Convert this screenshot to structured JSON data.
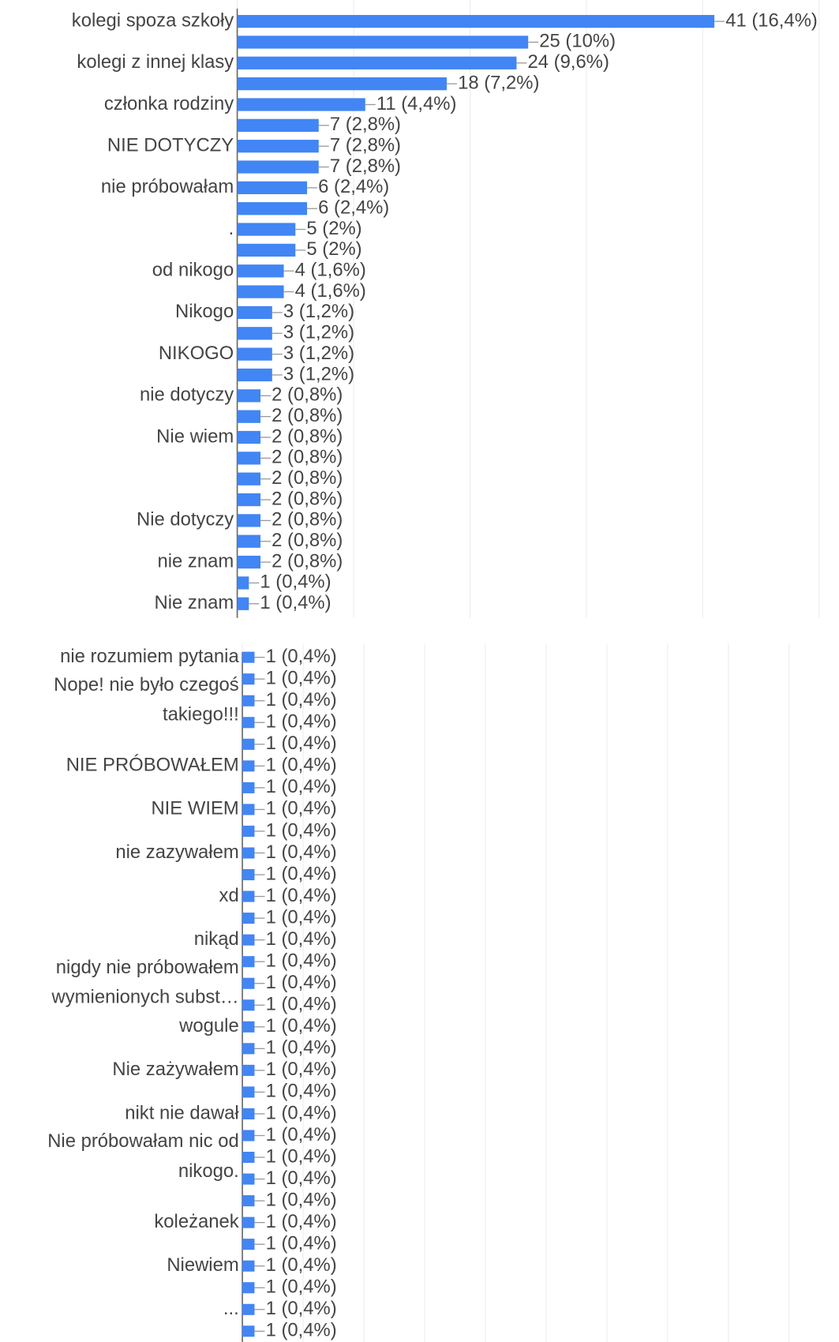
{
  "chart_data": [
    {
      "type": "bar",
      "color": "#4285f4",
      "xlim": [
        0,
        50
      ],
      "xticks": [
        0,
        10,
        20,
        30,
        40,
        50
      ],
      "grid": true,
      "categories": [
        "kolegi spoza szkoły",
        null,
        "kolegi z innej klasy",
        null,
        "członka rodziny",
        null,
        "NIE DOTYCZY",
        null,
        "nie próbowałam",
        null,
        ".",
        null,
        "od nikogo",
        null,
        "Nikogo",
        null,
        "NIKOGO",
        null,
        "nie dotyczy",
        null,
        "Nie wiem",
        null,
        null,
        null,
        "Nie dotyczy",
        null,
        "nie znam",
        null,
        "Nie znam"
      ],
      "values": [
        41,
        25,
        24,
        18,
        11,
        7,
        7,
        7,
        6,
        6,
        5,
        5,
        4,
        4,
        3,
        3,
        3,
        3,
        2,
        2,
        2,
        2,
        2,
        2,
        2,
        2,
        2,
        1,
        1
      ],
      "value_labels": [
        "41 (16,4%)",
        "25 (10%)",
        "24 (9,6%)",
        "18 (7,2%)",
        "11 (4,4%)",
        "7 (2,8%)",
        "7 (2,8%)",
        "7 (2,8%)",
        "6 (2,4%)",
        "6 (2,4%)",
        "5 (2%)",
        "5 (2%)",
        "4 (1,6%)",
        "4 (1,6%)",
        "3 (1,2%)",
        "3 (1,2%)",
        "3 (1,2%)",
        "3 (1,2%)",
        "2 (0,8%)",
        "2 (0,8%)",
        "2 (0,8%)",
        "2 (0,8%)",
        "2 (0,8%)",
        "2 (0,8%)",
        "2 (0,8%)",
        "2 (0,8%)",
        "2 (0,8%)",
        "1 (0,4%)",
        "1 (0,4%)"
      ]
    },
    {
      "type": "bar",
      "color": "#4285f4",
      "xlim": [
        0,
        45
      ],
      "xticks": [
        0,
        5,
        10,
        15,
        20,
        25,
        30,
        35,
        40,
        45
      ],
      "grid": true,
      "categories": [
        "nie rozumiem pytania",
        null,
        "Nope! nie było czegoś takiego!!!",
        null,
        null,
        "NIE PRÓBOWAŁEM",
        null,
        "NIE WIEM",
        null,
        "nie zazywałem",
        null,
        "xd",
        null,
        "nikąd",
        null,
        "nigdy nie próbowałem wymienionych subst…",
        null,
        "wogule",
        null,
        "Nie zażywałem",
        null,
        "nikt nie dawał",
        null,
        "Nie próbowałam nic od nikogo.",
        null,
        null,
        "koleżanek",
        null,
        "Niewiem",
        null,
        "...",
        null
      ],
      "values": [
        1,
        1,
        1,
        1,
        1,
        1,
        1,
        1,
        1,
        1,
        1,
        1,
        1,
        1,
        1,
        1,
        1,
        1,
        1,
        1,
        1,
        1,
        1,
        1,
        1,
        1,
        1,
        1,
        1,
        1,
        1,
        1
      ],
      "value_labels": [
        "1 (0,4%)",
        "1 (0,4%)",
        "1 (0,4%)",
        "1 (0,4%)",
        "1 (0,4%)",
        "1 (0,4%)",
        "1 (0,4%)",
        "1 (0,4%)",
        "1 (0,4%)",
        "1 (0,4%)",
        "1 (0,4%)",
        "1 (0,4%)",
        "1 (0,4%)",
        "1 (0,4%)",
        "1 (0,4%)",
        "1 (0,4%)",
        "1 (0,4%)",
        "1 (0,4%)",
        "1 (0,4%)",
        "1 (0,4%)",
        "1 (0,4%)",
        "1 (0,4%)",
        "1 (0,4%)",
        "1 (0,4%)",
        "1 (0,4%)",
        "1 (0,4%)",
        "1 (0,4%)",
        "1 (0,4%)",
        "1 (0,4%)",
        "1 (0,4%)",
        "1 (0,4%)",
        "1 (0,4%)"
      ]
    }
  ]
}
